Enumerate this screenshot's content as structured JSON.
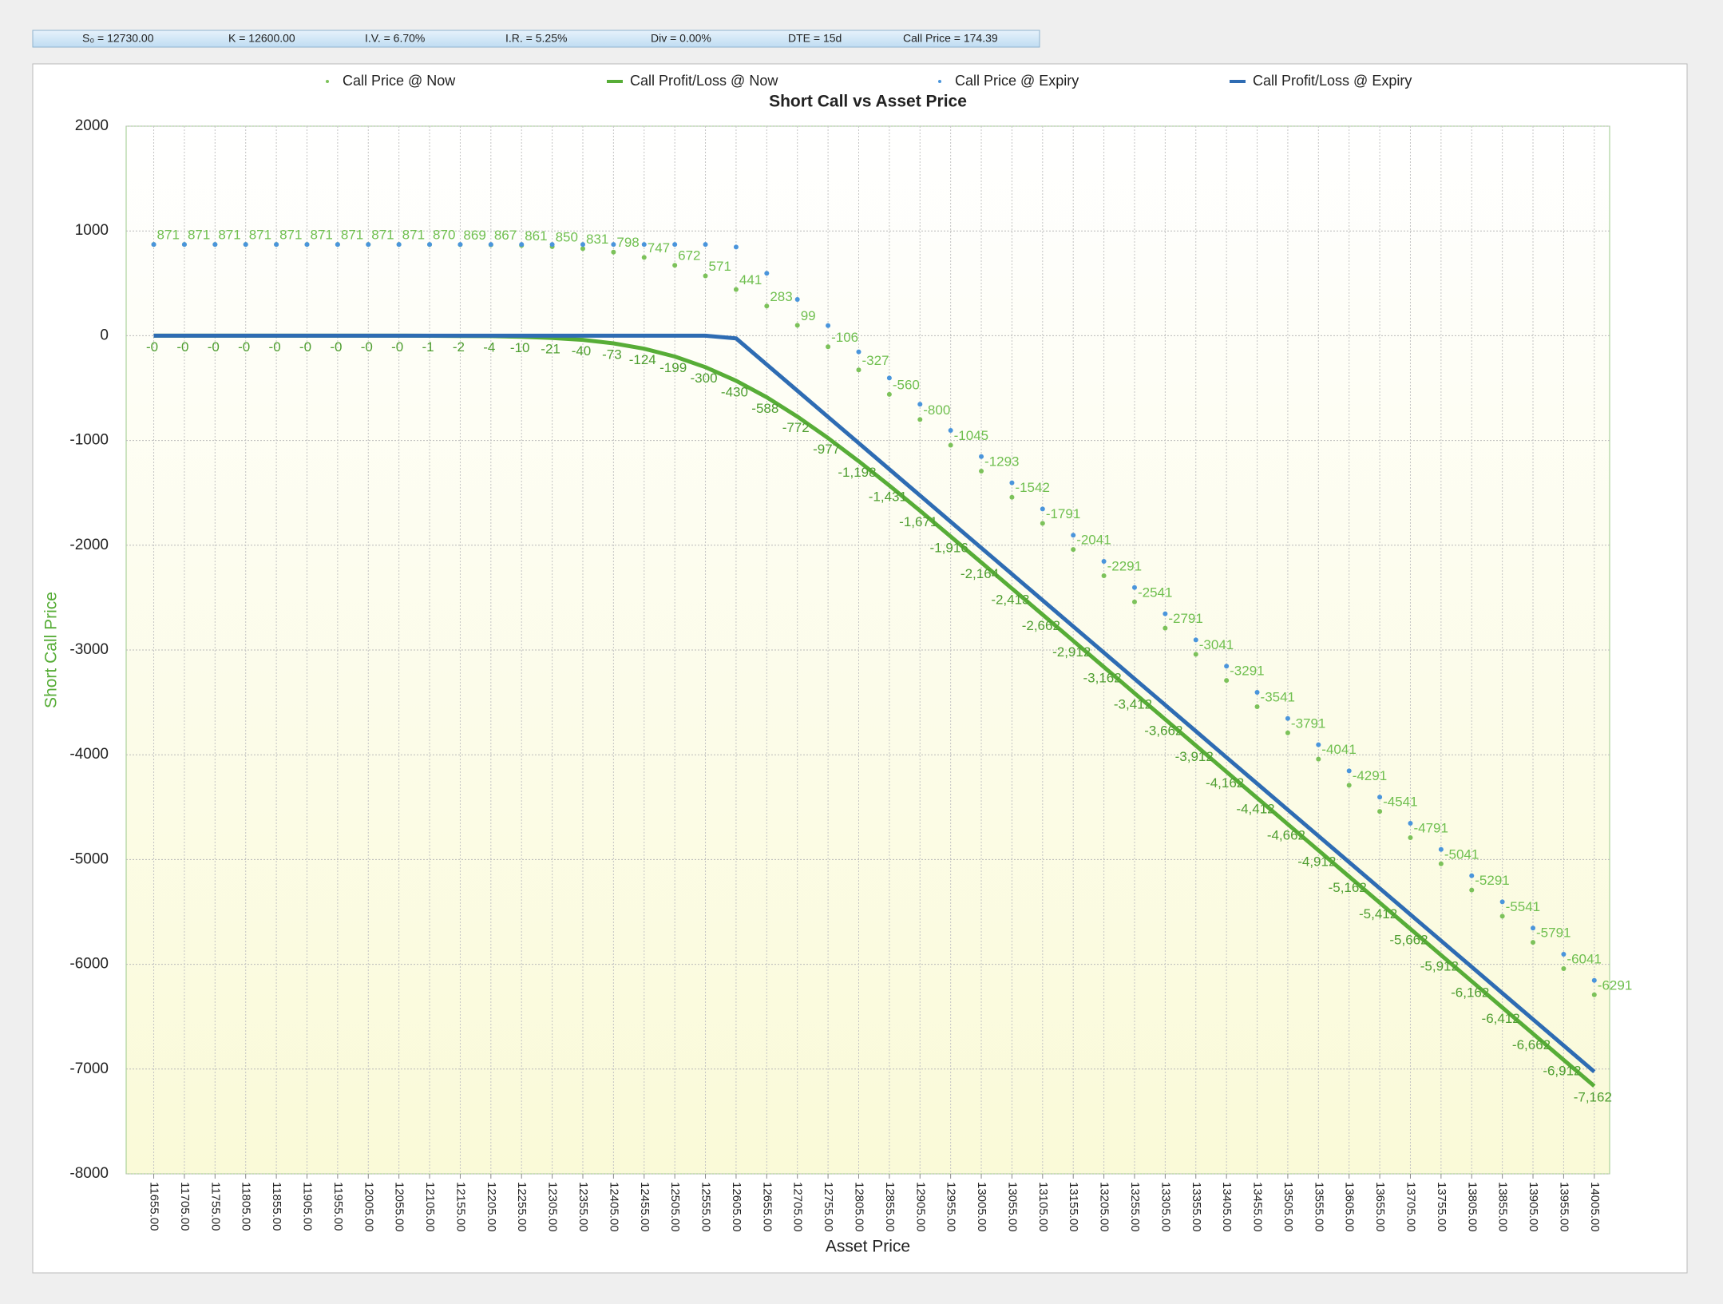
{
  "parameters": [
    "S₀ = 12730.00",
    "K = 12600.00",
    "I.V. = 6.70%",
    "I.R. = 5.25%",
    "Div = 0.00%",
    "DTE = 15d",
    "Call Price = 174.39"
  ],
  "chart_data": {
    "type": "line",
    "title": "Short Call vs Asset Price",
    "xlabel": "Asset Price",
    "ylabel": "Short Call Price",
    "x": [
      11655,
      11705,
      11755,
      11805,
      11855,
      11905,
      11955,
      12005,
      12055,
      12105,
      12155,
      12205,
      12255,
      12305,
      12355,
      12405,
      12455,
      12505,
      12555,
      12605,
      12655,
      12705,
      12755,
      12805,
      12855,
      12905,
      12955,
      13005,
      13055,
      13105,
      13155,
      13205,
      13255,
      13305,
      13355,
      13405,
      13455,
      13505,
      13555,
      13605,
      13655,
      13705,
      13755,
      13805,
      13855,
      13905,
      13955,
      14005
    ],
    "xlim": [
      11610,
      14030
    ],
    "xticks": [
      {
        "value": 11655,
        "label": "11655.00"
      },
      {
        "value": 11705,
        "label": "11705.00"
      },
      {
        "value": 11755,
        "label": "11755.00"
      },
      {
        "value": 11805,
        "label": "11805.00"
      },
      {
        "value": 11855,
        "label": "11855.00"
      },
      {
        "value": 11905,
        "label": "11905.00"
      },
      {
        "value": 11955,
        "label": "11955.00"
      },
      {
        "value": 12005,
        "label": "12005.00"
      },
      {
        "value": 12055,
        "label": "12055.00"
      },
      {
        "value": 12105,
        "label": "12105.00"
      },
      {
        "value": 12155,
        "label": "12155.00"
      },
      {
        "value": 12205,
        "label": "12205.00"
      },
      {
        "value": 12255,
        "label": "12255.00"
      },
      {
        "value": 12305,
        "label": "12305.00"
      },
      {
        "value": 12355,
        "label": "12355.00"
      },
      {
        "value": 12405,
        "label": "12405.00"
      },
      {
        "value": 12455,
        "label": "12455.00"
      },
      {
        "value": 12505,
        "label": "12505.00"
      },
      {
        "value": 12555,
        "label": "12555.00"
      },
      {
        "value": 12605,
        "label": "12605.00"
      },
      {
        "value": 12655,
        "label": "12655.00"
      },
      {
        "value": 12705,
        "label": "12705.00"
      },
      {
        "value": 12755,
        "label": "12755.00"
      },
      {
        "value": 12805,
        "label": "12805.00"
      },
      {
        "value": 12855,
        "label": "12855.00"
      },
      {
        "value": 12905,
        "label": "12905.00"
      },
      {
        "value": 12955,
        "label": "12955.00"
      },
      {
        "value": 13005,
        "label": "13005.00"
      },
      {
        "value": 13055,
        "label": "13055.00"
      },
      {
        "value": 13105,
        "label": "13105.00"
      },
      {
        "value": 13155,
        "label": "13155.00"
      },
      {
        "value": 13205,
        "label": "13205.00"
      },
      {
        "value": 13255,
        "label": "13255.00"
      },
      {
        "value": 13305,
        "label": "13305.00"
      },
      {
        "value": 13355,
        "label": "13355.00"
      },
      {
        "value": 13405,
        "label": "13405.00"
      },
      {
        "value": 13455,
        "label": "13455.00"
      },
      {
        "value": 13505,
        "label": "13505.00"
      },
      {
        "value": 13555,
        "label": "13555.00"
      },
      {
        "value": 13605,
        "label": "13605.00"
      },
      {
        "value": 13655,
        "label": "13655.00"
      },
      {
        "value": 13705,
        "label": "13705.00"
      },
      {
        "value": 13755,
        "label": "13755.00"
      },
      {
        "value": 13805,
        "label": "13805.00"
      },
      {
        "value": 13855,
        "label": "13855.00"
      },
      {
        "value": 13905,
        "label": "13905.00"
      },
      {
        "value": 13955,
        "label": "13955.00"
      },
      {
        "value": 14005,
        "label": "14005.00"
      }
    ],
    "ylim": [
      -8000,
      2000
    ],
    "yticks": [
      2000,
      1000,
      0,
      -1000,
      -2000,
      -3000,
      -4000,
      -5000,
      -6000,
      -7000,
      -8000
    ],
    "grid": true,
    "series": [
      {
        "name": "Call Price @ Now",
        "style": "dots",
        "color": "#7cc25a",
        "label_color": "#6fbf4f",
        "data_labels": true,
        "values": [
          871,
          871,
          871,
          871,
          871,
          871,
          871,
          871,
          871,
          870,
          869,
          867,
          861,
          850,
          831,
          798,
          747,
          672,
          571,
          441,
          283,
          99,
          -106,
          -327,
          -560,
          -800,
          -1045,
          -1293,
          -1542,
          -1791,
          -2041,
          -2291,
          -2541,
          -2791,
          -3041,
          -3291,
          -3541,
          -3791,
          -4041,
          -4291,
          -4541,
          -4791,
          -5041,
          -5291,
          -5541,
          -5791,
          -6041,
          -6291
        ]
      },
      {
        "name": "Call Profit/Loss @ Now",
        "style": "line",
        "color": "#57ad37",
        "label_color": "#4e9e30",
        "data_labels": true,
        "values": [
          -0.2,
          -0.2,
          -0.2,
          -0.2,
          -0.2,
          -0.2,
          -0.2,
          -0.2,
          -0.2,
          -1,
          -2,
          -4,
          -10,
          -21,
          -40,
          -73,
          -124,
          -199,
          -300,
          -430,
          -588,
          -772,
          -977,
          -1198,
          -1431,
          -1671,
          -1916,
          -2164,
          -2413,
          -2662,
          -2912,
          -3162,
          -3412,
          -3662,
          -3912,
          -4162,
          -4412,
          -4662,
          -4912,
          -5162,
          -5412,
          -5662,
          -5912,
          -6162,
          -6412,
          -6662,
          -6912,
          -7162
        ],
        "value_labels": [
          "-0",
          "-0",
          "-0",
          "-0",
          "-0",
          "-0",
          "-0",
          "-0",
          "-0",
          "-1",
          "-2",
          "-4",
          "-10",
          "-21",
          "-40",
          "-73",
          "-124",
          "-199",
          "-300",
          "-430",
          "-588",
          "-772",
          "-977",
          "-1,198",
          "-1,431",
          "-1,671",
          "-1,916",
          "-2,164",
          "-2,413",
          "-2,662",
          "-2,912",
          "-3,162",
          "-3,412",
          "-3,662",
          "-3,912",
          "-4,162",
          "-4,412",
          "-4,662",
          "-4,912",
          "-5,162",
          "-5,412",
          "-5,662",
          "-5,912",
          "-6,162",
          "-6,412",
          "-6,662",
          "-6,912",
          "-7,162"
        ]
      },
      {
        "name": "Call Price @ Expiry",
        "style": "dots",
        "color": "#4a95dc",
        "data_labels": false,
        "values": [
          871,
          871,
          871,
          871,
          871,
          871,
          871,
          871,
          871,
          871,
          871,
          871,
          871,
          871,
          871,
          871,
          871,
          871,
          871,
          846,
          596,
          346,
          96,
          -154,
          -404,
          -654,
          -904,
          -1154,
          -1404,
          -1654,
          -1904,
          -2154,
          -2404,
          -2654,
          -2904,
          -3154,
          -3404,
          -3654,
          -3904,
          -4154,
          -4404,
          -4654,
          -4904,
          -5154,
          -5404,
          -5654,
          -5904,
          -6154
        ]
      },
      {
        "name": "Call Profit/Loss @ Expiry",
        "style": "line",
        "color": "#2e6cb3",
        "data_labels": false,
        "values": [
          0,
          0,
          0,
          0,
          0,
          0,
          0,
          0,
          0,
          0,
          0,
          0,
          0,
          0,
          0,
          0,
          0,
          0,
          0,
          -25,
          -275,
          -525,
          -775,
          -1025,
          -1275,
          -1525,
          -1775,
          -2025,
          -2275,
          -2525,
          -2775,
          -3025,
          -3275,
          -3525,
          -3775,
          -4025,
          -4275,
          -4525,
          -4775,
          -5025,
          -5275,
          -5525,
          -5775,
          -6025,
          -6275,
          -6525,
          -6775,
          -7025
        ]
      }
    ]
  }
}
